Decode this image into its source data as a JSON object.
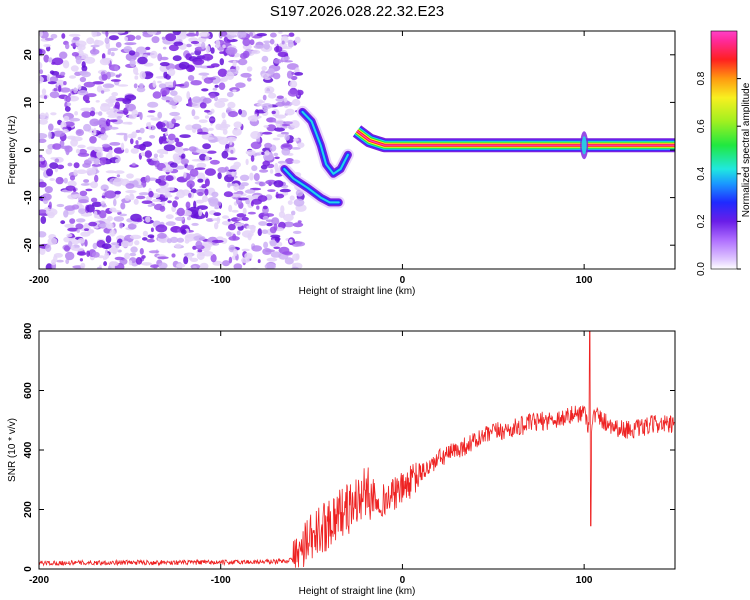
{
  "title": "S197.2026.028.22.32.E23",
  "colors": {
    "snr_line": "#ee2222",
    "frame": "#000000",
    "noise_purple": "#7a1fe0",
    "noise_light": "#d8c4f4"
  },
  "chart_data": [
    {
      "type": "heatmap",
      "title": "S197.2026.028.22.32.E23",
      "xlabel": "Height of straight line (km)",
      "ylabel": "Frequency (Hz)",
      "xlim": [
        -200,
        150
      ],
      "ylim": [
        -25,
        25
      ],
      "xticks": [
        -200,
        -100,
        0,
        100
      ],
      "xtick_labels": [
        "-200",
        "-100",
        "0",
        "100"
      ],
      "yticks": [
        -20,
        -10,
        0,
        10,
        20
      ],
      "ytick_labels": [
        "-20",
        "-10",
        "0",
        "10",
        "20"
      ],
      "noise_region_x": [
        -200,
        -60
      ],
      "ridge_upper": [
        [
          -55,
          8
        ],
        [
          -50,
          6
        ],
        [
          -45,
          1
        ],
        [
          -42,
          -3
        ],
        [
          -38,
          -5
        ],
        [
          -34,
          -4
        ],
        [
          -30,
          -1
        ]
      ],
      "ridge_lower": [
        [
          -65,
          -4
        ],
        [
          -60,
          -6
        ],
        [
          -52,
          -8
        ],
        [
          -45,
          -10
        ],
        [
          -40,
          -11
        ],
        [
          -35,
          -11
        ]
      ],
      "ridge_main": [
        [
          -25,
          4
        ],
        [
          -18,
          2
        ],
        [
          -10,
          1
        ],
        [
          0,
          1
        ],
        [
          10,
          1
        ],
        [
          30,
          1
        ],
        [
          60,
          1
        ],
        [
          100,
          1
        ],
        [
          150,
          1
        ]
      ],
      "colorbar": {
        "label": "Normalized spectral amplitude",
        "range": [
          0,
          1
        ],
        "ticks": [
          0.0,
          0.2,
          0.4,
          0.6,
          0.8
        ],
        "tick_labels": [
          "0.0",
          "0.2",
          "0.4",
          "0.6",
          "0.8"
        ]
      }
    },
    {
      "type": "line",
      "xlabel": "Height of straight line (km)",
      "ylabel": "SNR (10 * v/v)",
      "xlim": [
        -200,
        150
      ],
      "ylim": [
        0,
        800
      ],
      "xticks": [
        -200,
        -100,
        0,
        100
      ],
      "xtick_labels": [
        "-200",
        "-100",
        "0",
        "100"
      ],
      "yticks": [
        0,
        200,
        400,
        600,
        800
      ],
      "ytick_labels": [
        "0",
        "200",
        "400",
        "600",
        "800"
      ],
      "series": [
        {
          "name": "SNR",
          "x": [
            -200,
            -150,
            -100,
            -70,
            -60,
            -55,
            -50,
            -45,
            -40,
            -35,
            -30,
            -25,
            -20,
            -15,
            -10,
            -5,
            0,
            10,
            20,
            30,
            40,
            50,
            60,
            70,
            80,
            90,
            95,
            100,
            103,
            106,
            110,
            120,
            130,
            140,
            150
          ],
          "values": [
            20,
            22,
            22,
            25,
            30,
            60,
            100,
            130,
            160,
            190,
            200,
            230,
            260,
            240,
            230,
            250,
            270,
            320,
            370,
            400,
            430,
            460,
            470,
            490,
            500,
            510,
            520,
            530,
            470,
            520,
            500,
            470,
            470,
            490,
            480
          ]
        }
      ],
      "annotations": [
        {
          "x": 104,
          "label": "spike",
          "peak": 800,
          "dip": 145
        }
      ]
    }
  ]
}
